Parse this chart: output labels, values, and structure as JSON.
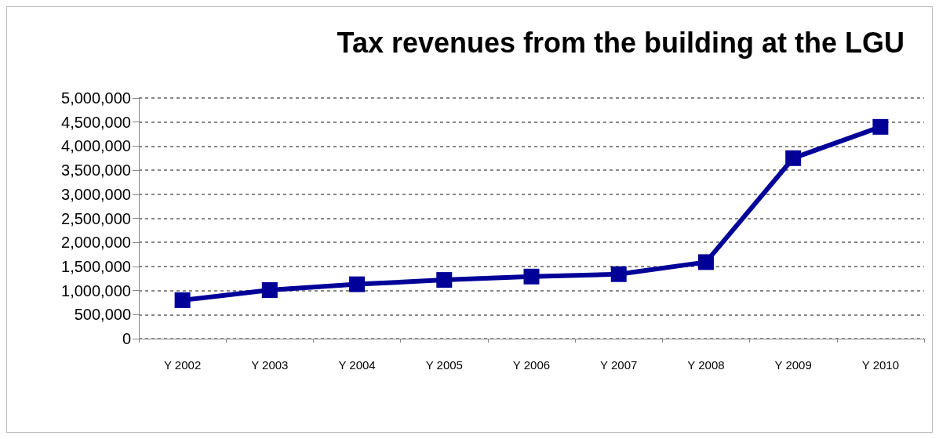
{
  "chart_data": {
    "type": "line",
    "title": "Tax revenues from the building at the LGU",
    "categories": [
      "Y 2002",
      "Y 2003",
      "Y 2004",
      "Y 2005",
      "Y 2006",
      "Y 2007",
      "Y 2008",
      "Y 2009",
      "Y 2010"
    ],
    "series": [
      {
        "color": "#000099",
        "values": [
          800000,
          1010000,
          1130000,
          1220000,
          1290000,
          1340000,
          1590000,
          3750000,
          4400000
        ]
      }
    ],
    "ylim": [
      0,
      5000000
    ],
    "yticks": [
      0,
      {
        "value": 500000,
        "label": "500,000"
      },
      {
        "value": 1000000,
        "label": "1,000,000"
      },
      {
        "value": 1500000,
        "label": "1,500,000"
      },
      {
        "value": 2000000,
        "label": "2,000,000"
      },
      {
        "value": 2500000,
        "label": "2,500,000"
      },
      {
        "value": 3000000,
        "label": "3,000,000"
      },
      {
        "value": 3500000,
        "label": "3,500,000"
      },
      {
        "value": 4000000,
        "label": "4,000,000"
      },
      {
        "value": 4500000,
        "label": "4,500,000"
      },
      {
        "value": 5000000,
        "label": "5,000,000"
      }
    ],
    "grid": "y",
    "marker": "square",
    "line_style": "solid"
  }
}
